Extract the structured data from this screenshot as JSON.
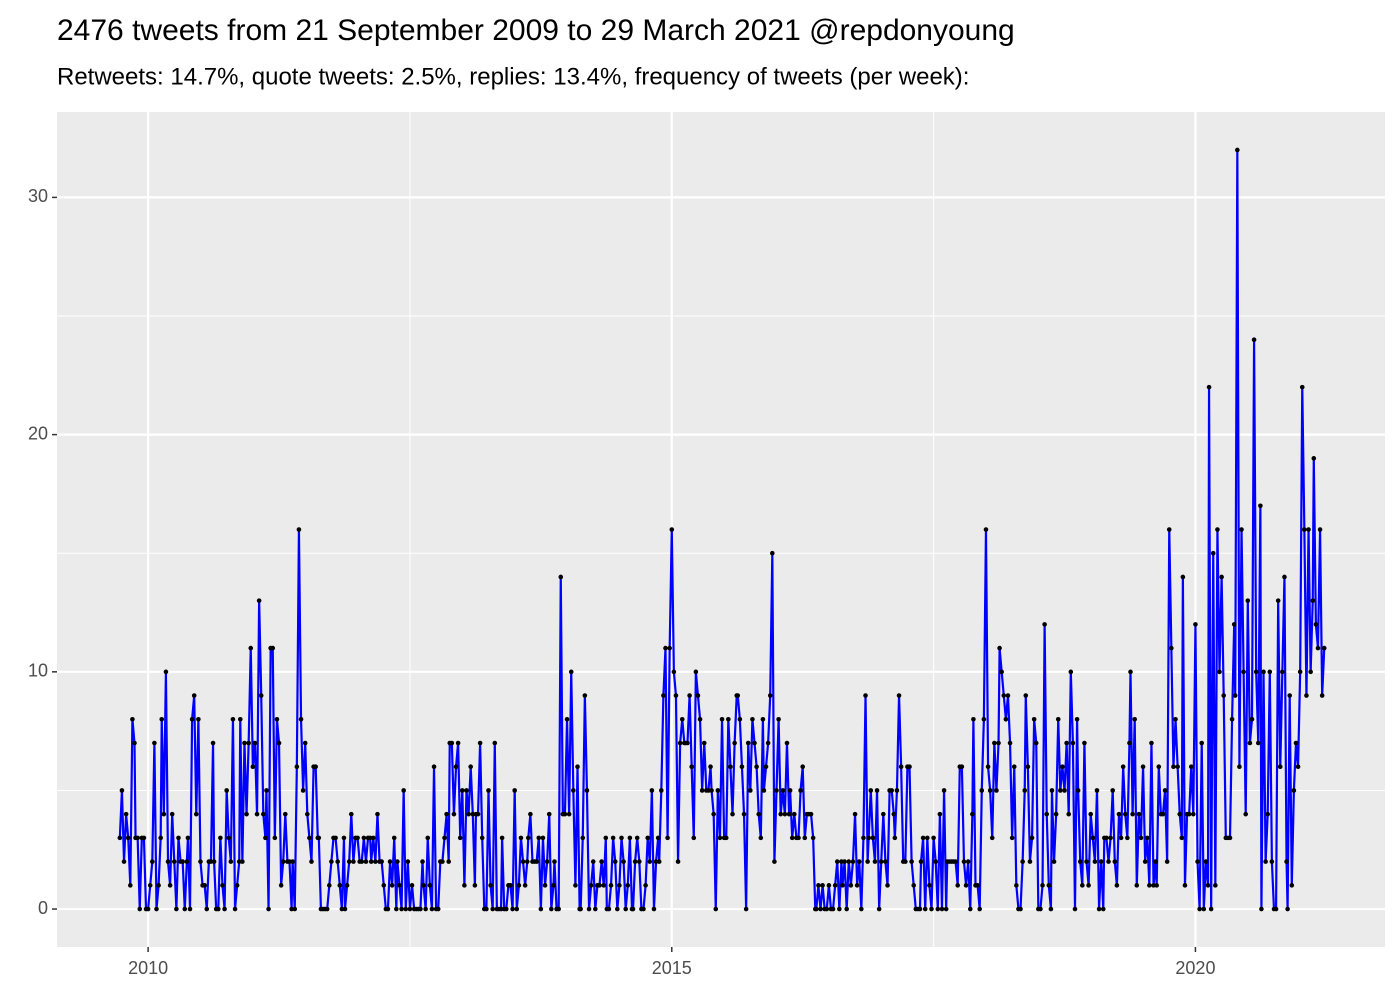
{
  "chart_data": {
    "type": "line",
    "title": "2476 tweets from 21 September 2009 to 29 March 2021 @repdonyoung",
    "subtitle": "Retweets: 14.7%, quote tweets: 2.5%, replies: 13.4%, frequency of tweets (per week):",
    "xlim": [
      2009.13,
      2021.81
    ],
    "xticks": [
      2010,
      2015,
      2020
    ],
    "ylim": [
      -1.6,
      33.6
    ],
    "yticks": [
      0,
      10,
      20,
      30
    ],
    "grid": true,
    "series": [
      {
        "color": "#0000ff",
        "marker_color": "#000000",
        "x": [
          2009.73,
          2009.75,
          2009.77,
          2009.79,
          2009.81,
          2009.83,
          2009.85,
          2009.87,
          2009.88,
          2009.9,
          2009.92,
          2009.94,
          2009.96,
          2009.98,
          2010,
          2010.02,
          2010.04,
          2010.06,
          2010.08,
          2010.1,
          2010.12,
          2010.13,
          2010.15,
          2010.17,
          2010.19,
          2010.21,
          2010.23,
          2010.25,
          2010.27,
          2010.29,
          2010.31,
          2010.33,
          2010.35,
          2010.37,
          2010.38,
          2010.4,
          2010.42,
          2010.44,
          2010.46,
          2010.48,
          2010.5,
          2010.52,
          2010.54,
          2010.56,
          2010.58,
          2010.6,
          2010.62,
          2010.63,
          2010.65,
          2010.67,
          2010.69,
          2010.71,
          2010.73,
          2010.75,
          2010.77,
          2010.79,
          2010.81,
          2010.83,
          2010.85,
          2010.87,
          2010.88,
          2010.9,
          2010.92,
          2010.94,
          2010.96,
          2010.98,
          2011,
          2011.02,
          2011.04,
          2011.06,
          2011.08,
          2011.1,
          2011.12,
          2011.13,
          2011.15,
          2011.17,
          2011.19,
          2011.21,
          2011.23,
          2011.25,
          2011.27,
          2011.29,
          2011.31,
          2011.33,
          2011.35,
          2011.37,
          2011.38,
          2011.4,
          2011.42,
          2011.44,
          2011.46,
          2011.48,
          2011.5,
          2011.52,
          2011.54,
          2011.56,
          2011.58,
          2011.6,
          2011.62,
          2011.63,
          2011.65,
          2011.67,
          2011.69,
          2011.71,
          2011.73,
          2011.75,
          2011.77,
          2011.79,
          2011.81,
          2011.83,
          2011.85,
          2011.87,
          2011.88,
          2011.9,
          2011.92,
          2011.94,
          2011.96,
          2011.98,
          2012,
          2012.02,
          2012.04,
          2012.06,
          2012.08,
          2012.1,
          2012.12,
          2012.13,
          2012.15,
          2012.17,
          2012.19,
          2012.21,
          2012.23,
          2012.25,
          2012.27,
          2012.29,
          2012.31,
          2012.33,
          2012.35,
          2012.37,
          2012.38,
          2012.4,
          2012.42,
          2012.44,
          2012.46,
          2012.48,
          2012.5,
          2012.52,
          2012.54,
          2012.56,
          2012.58,
          2012.6,
          2012.62,
          2012.63,
          2012.65,
          2012.67,
          2012.69,
          2012.71,
          2012.73,
          2012.75,
          2012.77,
          2012.79,
          2012.81,
          2012.83,
          2012.85,
          2012.87,
          2012.88,
          2012.9,
          2012.92,
          2012.94,
          2012.96,
          2012.98,
          2013,
          2013.02,
          2013.04,
          2013.06,
          2013.08,
          2013.1,
          2013.12,
          2013.13,
          2013.15,
          2013.17,
          2013.19,
          2013.21,
          2013.23,
          2013.25,
          2013.27,
          2013.29,
          2013.31,
          2013.33,
          2013.35,
          2013.37,
          2013.38,
          2013.4,
          2013.42,
          2013.44,
          2013.46,
          2013.48,
          2013.5,
          2013.52,
          2013.54,
          2013.56,
          2013.58,
          2013.6,
          2013.62,
          2013.63,
          2013.65,
          2013.67,
          2013.69,
          2013.71,
          2013.73,
          2013.75,
          2013.77,
          2013.79,
          2013.81,
          2013.83,
          2013.85,
          2013.87,
          2013.88,
          2013.9,
          2013.92,
          2013.94,
          2013.96,
          2013.98,
          2014,
          2014.02,
          2014.04,
          2014.06,
          2014.08,
          2014.1,
          2014.12,
          2014.13,
          2014.15,
          2014.17,
          2014.19,
          2014.21,
          2014.23,
          2014.25,
          2014.27,
          2014.29,
          2014.31,
          2014.33,
          2014.35,
          2014.37,
          2014.38,
          2014.4,
          2014.42,
          2014.44,
          2014.46,
          2014.48,
          2014.5,
          2014.52,
          2014.54,
          2014.56,
          2014.58,
          2014.6,
          2014.62,
          2014.63,
          2014.65,
          2014.67,
          2014.69,
          2014.71,
          2014.73,
          2014.75,
          2014.77,
          2014.79,
          2014.81,
          2014.83,
          2014.85,
          2014.87,
          2014.88,
          2014.9,
          2014.92,
          2014.94,
          2014.96,
          2014.98,
          2015,
          2015.02,
          2015.04,
          2015.06,
          2015.08,
          2015.1,
          2015.12,
          2015.13,
          2015.15,
          2015.17,
          2015.19,
          2015.21,
          2015.23,
          2015.25,
          2015.27,
          2015.29,
          2015.31,
          2015.33,
          2015.35,
          2015.37,
          2015.38,
          2015.4,
          2015.42,
          2015.44,
          2015.46,
          2015.48,
          2015.5,
          2015.52,
          2015.54,
          2015.56,
          2015.58,
          2015.6,
          2015.62,
          2015.63,
          2015.65,
          2015.67,
          2015.69,
          2015.71,
          2015.73,
          2015.75,
          2015.77,
          2015.79,
          2015.81,
          2015.83,
          2015.85,
          2015.87,
          2015.88,
          2015.9,
          2015.92,
          2015.94,
          2015.96,
          2015.98,
          2016,
          2016.02,
          2016.04,
          2016.06,
          2016.08,
          2016.1,
          2016.12,
          2016.13,
          2016.15,
          2016.17,
          2016.19,
          2016.21,
          2016.23,
          2016.25,
          2016.27,
          2016.29,
          2016.31,
          2016.33,
          2016.35,
          2016.37,
          2016.38,
          2016.4,
          2016.42,
          2016.44,
          2016.46,
          2016.48,
          2016.5,
          2016.52,
          2016.54,
          2016.56,
          2016.58,
          2016.6,
          2016.62,
          2016.63,
          2016.65,
          2016.67,
          2016.69,
          2016.71,
          2016.73,
          2016.75,
          2016.77,
          2016.79,
          2016.81,
          2016.83,
          2016.85,
          2016.87,
          2016.88,
          2016.9,
          2016.92,
          2016.94,
          2016.96,
          2016.98,
          2017,
          2017.02,
          2017.04,
          2017.06,
          2017.08,
          2017.1,
          2017.12,
          2017.13,
          2017.15,
          2017.17,
          2017.19,
          2017.21,
          2017.23,
          2017.25,
          2017.27,
          2017.29,
          2017.31,
          2017.33,
          2017.35,
          2017.37,
          2017.38,
          2017.4,
          2017.42,
          2017.44,
          2017.46,
          2017.48,
          2017.5,
          2017.52,
          2017.54,
          2017.56,
          2017.58,
          2017.6,
          2017.62,
          2017.63,
          2017.65,
          2017.67,
          2017.69,
          2017.71,
          2017.73,
          2017.75,
          2017.77,
          2017.79,
          2017.81,
          2017.83,
          2017.85,
          2017.87,
          2017.88,
          2017.9,
          2017.92,
          2017.94,
          2017.96,
          2017.98,
          2018,
          2018.02,
          2018.04,
          2018.06,
          2018.08,
          2018.1,
          2018.12,
          2018.13,
          2018.15,
          2018.17,
          2018.19,
          2018.21,
          2018.23,
          2018.25,
          2018.27,
          2018.29,
          2018.31,
          2018.33,
          2018.35,
          2018.37,
          2018.38,
          2018.4,
          2018.42,
          2018.44,
          2018.46,
          2018.48,
          2018.5,
          2018.52,
          2018.54,
          2018.56,
          2018.58,
          2018.6,
          2018.62,
          2018.63,
          2018.65,
          2018.67,
          2018.69,
          2018.71,
          2018.73,
          2018.75,
          2018.77,
          2018.79,
          2018.81,
          2018.83,
          2018.85,
          2018.87,
          2018.88,
          2018.9,
          2018.92,
          2018.94,
          2018.96,
          2018.98,
          2019,
          2019.02,
          2019.04,
          2019.06,
          2019.08,
          2019.1,
          2019.12,
          2019.13,
          2019.15,
          2019.17,
          2019.19,
          2019.21,
          2019.23,
          2019.25,
          2019.27,
          2019.29,
          2019.31,
          2019.33,
          2019.35,
          2019.37,
          2019.38,
          2019.4,
          2019.42,
          2019.44,
          2019.46,
          2019.48,
          2019.5,
          2019.52,
          2019.54,
          2019.56,
          2019.58,
          2019.6,
          2019.62,
          2019.63,
          2019.65,
          2019.67,
          2019.69,
          2019.71,
          2019.73,
          2019.75,
          2019.77,
          2019.79,
          2019.81,
          2019.83,
          2019.85,
          2019.87,
          2019.88,
          2019.9,
          2019.92,
          2019.94,
          2019.96,
          2019.98,
          2020,
          2020.02,
          2020.04,
          2020.06,
          2020.08,
          2020.1,
          2020.12,
          2020.13,
          2020.15,
          2020.17,
          2020.19,
          2020.21,
          2020.23,
          2020.25,
          2020.27,
          2020.29,
          2020.31,
          2020.33,
          2020.35,
          2020.37,
          2020.38,
          2020.4,
          2020.42,
          2020.44,
          2020.46,
          2020.48,
          2020.5,
          2020.52,
          2020.54,
          2020.56,
          2020.58,
          2020.6,
          2020.62,
          2020.63,
          2020.65,
          2020.67,
          2020.69,
          2020.71,
          2020.73,
          2020.75,
          2020.77,
          2020.79,
          2020.81,
          2020.83,
          2020.85,
          2020.87,
          2020.88,
          2020.9,
          2020.92,
          2020.94,
          2020.96,
          2020.98,
          2021,
          2021.02,
          2021.04,
          2021.06,
          2021.08,
          2021.1,
          2021.12,
          2021.13,
          2021.15,
          2021.17,
          2021.19,
          2021.21,
          2021.23
        ],
        "values": [
          3,
          5,
          2,
          4,
          3,
          1,
          8,
          7,
          3,
          3,
          0,
          3,
          3,
          0,
          0,
          1,
          2,
          7,
          0,
          1,
          3,
          8,
          4,
          10,
          2,
          1,
          4,
          2,
          0,
          3,
          2,
          2,
          0,
          2,
          3,
          0,
          8,
          9,
          4,
          8,
          2,
          1,
          1,
          0,
          2,
          2,
          7,
          2,
          0,
          0,
          3,
          1,
          0,
          5,
          3,
          2,
          8,
          0,
          1,
          2,
          8,
          2,
          7,
          4,
          7,
          11,
          6,
          7,
          4,
          13,
          9,
          4,
          3,
          5,
          0,
          11,
          11,
          3,
          8,
          7,
          1,
          2,
          4,
          2,
          2,
          0,
          2,
          0,
          6,
          16,
          8,
          5,
          7,
          4,
          3,
          2,
          6,
          6,
          3,
          3,
          0,
          0,
          0,
          0,
          1,
          2,
          3,
          3,
          2,
          1,
          0,
          3,
          0,
          1,
          2,
          4,
          2,
          3,
          3,
          2,
          2,
          3,
          2,
          3,
          3,
          2,
          3,
          2,
          4,
          2,
          2,
          1,
          0,
          0,
          2,
          1,
          3,
          0,
          2,
          1,
          0,
          5,
          0,
          2,
          0,
          1,
          0,
          0,
          0,
          0,
          2,
          1,
          0,
          3,
          1,
          0,
          6,
          0,
          0,
          2,
          2,
          3,
          4,
          2,
          7,
          7,
          4,
          6,
          7,
          3,
          5,
          1,
          5,
          4,
          6,
          4,
          1,
          4,
          4,
          7,
          3,
          0,
          0,
          5,
          1,
          0,
          7,
          0,
          0,
          0,
          3,
          0,
          0,
          1,
          1,
          0,
          5,
          0,
          1,
          3,
          2,
          1,
          2,
          3,
          4,
          2,
          2,
          2,
          3,
          0,
          3,
          1,
          2,
          4,
          0,
          1,
          2,
          0,
          0,
          14,
          4,
          4,
          8,
          4,
          10,
          5,
          1,
          6,
          0,
          0,
          3,
          9,
          5,
          0,
          1,
          2,
          0,
          1,
          1,
          2,
          1,
          3,
          0,
          0,
          1,
          3,
          2,
          0,
          1,
          3,
          2,
          0,
          1,
          3,
          0,
          0,
          2,
          3,
          2,
          0,
          0,
          1,
          3,
          2,
          5,
          0,
          2,
          3,
          2,
          5,
          9,
          11,
          3,
          11,
          16,
          10,
          9,
          2,
          7,
          8,
          7,
          7,
          7,
          9,
          6,
          3,
          10,
          9,
          8,
          5,
          7,
          5,
          5,
          6,
          5,
          4,
          0,
          5,
          3,
          8,
          3,
          3,
          8,
          6,
          4,
          7,
          9,
          9,
          8,
          6,
          4,
          0,
          7,
          5,
          8,
          7,
          6,
          4,
          3,
          8,
          5,
          6,
          7,
          9,
          15,
          2,
          5,
          8,
          4,
          5,
          4,
          7,
          4,
          5,
          3,
          4,
          3,
          3,
          5,
          6,
          3,
          4,
          4,
          4,
          3,
          0,
          0,
          1,
          0,
          1,
          0,
          0,
          1,
          0,
          0,
          1,
          2,
          0,
          2,
          1,
          2,
          0,
          2,
          1,
          2,
          4,
          1,
          2,
          0,
          3,
          9,
          2,
          3,
          5,
          3,
          2,
          5,
          0,
          2,
          4,
          2,
          1,
          5,
          5,
          4,
          3,
          5,
          9,
          6,
          2,
          2,
          6,
          6,
          2,
          1,
          0,
          0,
          0,
          2,
          3,
          0,
          3,
          1,
          0,
          3,
          2,
          0,
          4,
          0,
          5,
          0,
          2,
          2,
          2,
          2,
          2,
          1,
          6,
          6,
          2,
          1,
          2,
          0,
          4,
          8,
          1,
          1,
          0,
          5,
          8,
          16,
          6,
          5,
          3,
          7,
          5,
          7,
          11,
          10,
          9,
          8,
          9,
          7,
          3,
          6,
          1,
          0,
          0,
          2,
          5,
          9,
          6,
          2,
          3,
          8,
          7,
          0,
          0,
          1,
          12,
          4,
          1,
          0,
          5,
          2,
          4,
          8,
          5,
          6,
          5,
          7,
          4,
          10,
          7,
          0,
          8,
          5,
          2,
          1,
          7,
          2,
          1,
          4,
          3,
          2,
          5,
          0,
          2,
          0,
          3,
          3,
          2,
          3,
          5,
          2,
          1,
          4,
          3,
          6,
          4,
          3,
          7,
          10,
          4,
          8,
          1,
          4,
          3,
          6,
          2,
          3,
          1,
          7,
          1,
          2,
          1,
          6,
          4,
          4,
          5,
          2,
          16,
          11,
          6,
          8,
          6,
          4,
          3,
          14,
          1,
          4,
          4,
          6,
          4,
          12,
          2,
          0,
          7,
          0,
          2,
          1,
          22,
          0,
          15,
          1,
          16,
          10,
          14,
          9,
          3,
          3,
          3,
          8,
          12,
          9,
          32,
          6,
          16,
          10,
          4,
          13,
          7,
          8,
          24,
          10,
          7,
          17,
          0,
          10,
          2,
          4,
          10,
          2,
          0,
          0,
          13,
          6,
          10,
          14,
          2,
          0,
          9,
          1,
          5,
          7,
          6,
          10,
          22,
          16,
          9,
          16,
          10,
          13,
          19,
          12,
          11,
          16,
          9,
          11
        ]
      }
    ]
  }
}
